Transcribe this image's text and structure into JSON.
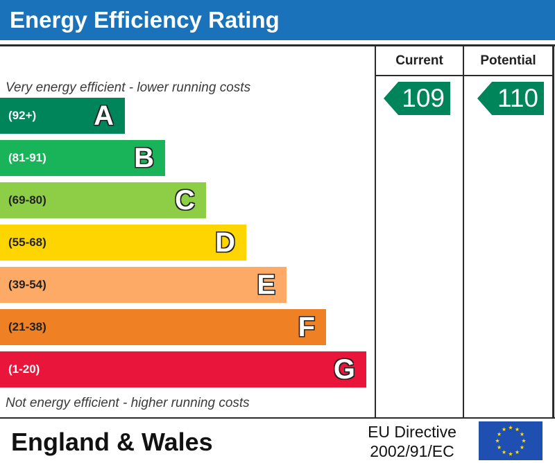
{
  "title": "Energy Efficiency Rating",
  "columns": {
    "current": "Current",
    "potential": "Potential"
  },
  "top_note": "Very energy efficient - lower running costs",
  "bottom_note": "Not energy efficient - higher running costs",
  "footer": {
    "region": "England & Wales",
    "directive_line1": "EU Directive",
    "directive_line2": "2002/91/EC"
  },
  "colors": {
    "header": "#1a72bb",
    "A": "#00855a",
    "B": "#19b459",
    "C": "#8dce46",
    "D": "#ffd500",
    "E": "#fcaa65",
    "F": "#ef8023",
    "G": "#e9153b",
    "arrow": "#00855a",
    "eu_blue": "#1f4fb0",
    "eu_star": "#ffdd00"
  },
  "chart_data": {
    "type": "bar",
    "categories": [
      "A",
      "B",
      "C",
      "D",
      "E",
      "F",
      "G"
    ],
    "ranges": [
      "(92+)",
      "(81-91)",
      "(69-80)",
      "(55-68)",
      "(39-54)",
      "(21-38)",
      "(1-20)"
    ],
    "current_rating": 109,
    "potential_rating": 110,
    "current_band": "A",
    "potential_band": "A"
  }
}
